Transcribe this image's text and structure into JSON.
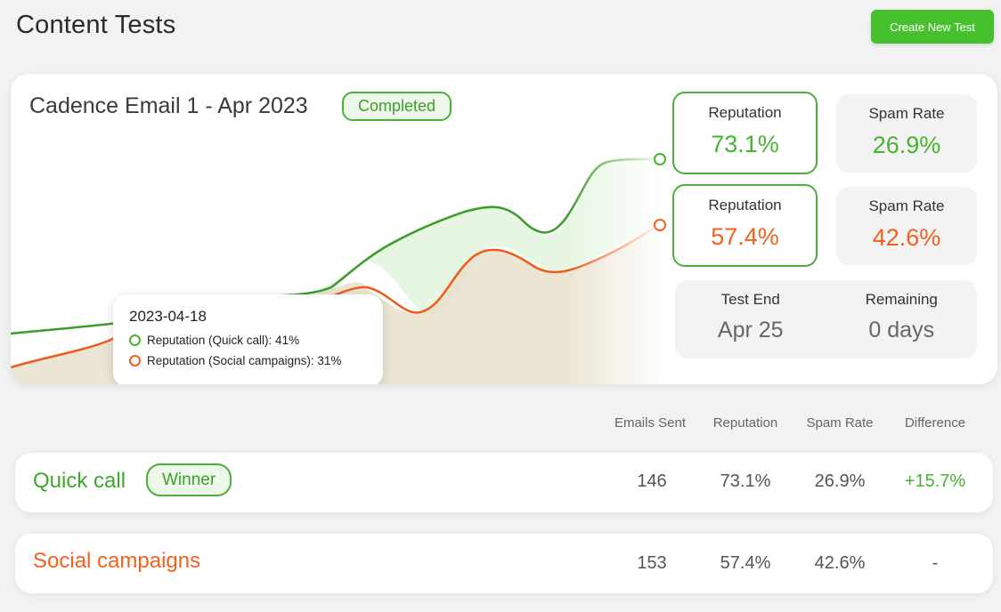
{
  "page": {
    "title": "Content Tests",
    "create_button": "Create New Test"
  },
  "test": {
    "name": "Cadence Email 1 - Apr 2023",
    "status": "Completed",
    "variant_a": {
      "reputation_label": "Reputation",
      "reputation": "73.1%",
      "spam_label": "Spam Rate",
      "spam": "26.9%"
    },
    "variant_b": {
      "reputation_label": "Reputation",
      "reputation": "57.4%",
      "spam_label": "Spam Rate",
      "spam": "42.6%"
    },
    "timing": {
      "end_label": "Test End",
      "end_value": "Apr 25",
      "remaining_label": "Remaining",
      "remaining_value": "0 days"
    },
    "tooltip": {
      "date": "2023-04-18",
      "line_a": "Reputation (Quick call): 41%",
      "line_b": "Reputation (Social campaigns): 31%"
    }
  },
  "colors": {
    "green": "#47b430",
    "orange": "#f2611d",
    "brand": "#47c02e"
  },
  "table": {
    "headers": [
      "Emails Sent",
      "Reputation",
      "Spam Rate",
      "Difference"
    ],
    "rows": [
      {
        "name": "Quick call",
        "badge": "Winner",
        "emails": "146",
        "reputation": "73.1%",
        "spam": "26.9%",
        "difference": "+15.7%"
      },
      {
        "name": "Social campaigns",
        "emails": "153",
        "reputation": "57.4%",
        "spam": "42.6%",
        "difference": "-"
      }
    ]
  }
}
